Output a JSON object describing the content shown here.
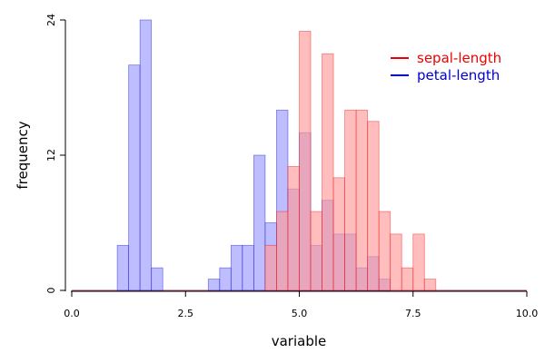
{
  "chart_data": {
    "type": "bar",
    "title": "",
    "xlabel": "variable",
    "ylabel": "frequency",
    "xlim": [
      0,
      10
    ],
    "ylim": [
      0,
      24
    ],
    "x_ticks": [
      "0.0",
      "2.5",
      "5.0",
      "7.5",
      "10.0"
    ],
    "y_ticks": [
      "0",
      "12",
      "24"
    ],
    "grid": false,
    "legend_position": "top-right",
    "bin_width": 0.25,
    "series": [
      {
        "name": "petal-length",
        "color": "#0000cc",
        "fill": "#9999ff",
        "bins": [
          {
            "x": 1.0,
            "count": 4
          },
          {
            "x": 1.25,
            "count": 20
          },
          {
            "x": 1.5,
            "count": 24
          },
          {
            "x": 1.75,
            "count": 2
          },
          {
            "x": 3.0,
            "count": 1
          },
          {
            "x": 3.25,
            "count": 2
          },
          {
            "x": 3.5,
            "count": 4
          },
          {
            "x": 3.75,
            "count": 4
          },
          {
            "x": 4.0,
            "count": 12
          },
          {
            "x": 4.25,
            "count": 6
          },
          {
            "x": 4.5,
            "count": 16
          },
          {
            "x": 4.75,
            "count": 9
          },
          {
            "x": 5.0,
            "count": 14
          },
          {
            "x": 5.25,
            "count": 4
          },
          {
            "x": 5.5,
            "count": 8
          },
          {
            "x": 5.75,
            "count": 5
          },
          {
            "x": 6.0,
            "count": 5
          },
          {
            "x": 6.25,
            "count": 2
          },
          {
            "x": 6.5,
            "count": 3
          },
          {
            "x": 6.75,
            "count": 1
          }
        ]
      },
      {
        "name": "sepal-length",
        "color": "#ee0000",
        "fill": "#ff9999",
        "bins": [
          {
            "x": 4.25,
            "count": 4
          },
          {
            "x": 4.5,
            "count": 7
          },
          {
            "x": 4.75,
            "count": 11
          },
          {
            "x": 5.0,
            "count": 23
          },
          {
            "x": 5.25,
            "count": 7
          },
          {
            "x": 5.5,
            "count": 21
          },
          {
            "x": 5.75,
            "count": 10
          },
          {
            "x": 6.0,
            "count": 16
          },
          {
            "x": 6.25,
            "count": 16
          },
          {
            "x": 6.5,
            "count": 15
          },
          {
            "x": 6.75,
            "count": 7
          },
          {
            "x": 7.0,
            "count": 5
          },
          {
            "x": 7.25,
            "count": 2
          },
          {
            "x": 7.5,
            "count": 5
          },
          {
            "x": 7.75,
            "count": 1
          }
        ]
      }
    ]
  }
}
